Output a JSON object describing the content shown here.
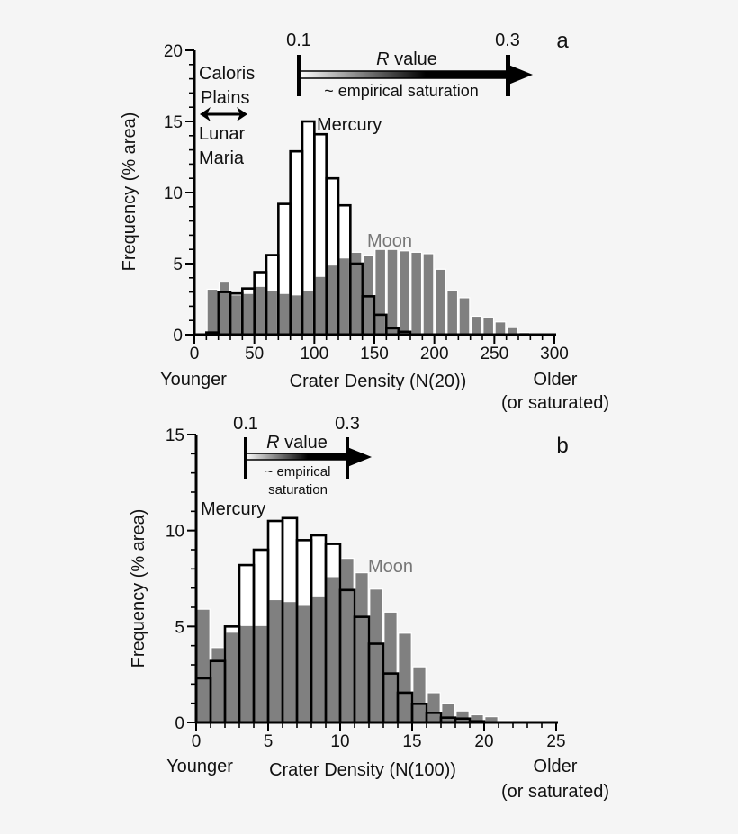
{
  "chart_data": [
    {
      "type": "bar",
      "panel_label": "a",
      "xlabel": "Crater Density (N(20))",
      "ylabel": "Frequency (% area)",
      "x_left_note": "Younger",
      "x_right_note": [
        "Older",
        "(or saturated)"
      ],
      "xlim": [
        0,
        300
      ],
      "ylim": [
        0,
        20
      ],
      "xticks": [
        "0",
        "50",
        "100",
        "150",
        "200",
        "250",
        "300"
      ],
      "yticks": [
        "0",
        "5",
        "10",
        "15",
        "20"
      ],
      "bin_width": 10,
      "colors": {
        "Moon": "#808080",
        "Mercury": "#000000",
        "Mercury_fill": "#ffffff"
      },
      "annotations": {
        "r_scale": {
          "left": "0.1",
          "right": "0.3",
          "title_italic": "R",
          "title": " value",
          "below": [
            "~ empirical saturation"
          ]
        },
        "caloris": [
          "Caloris",
          "Plains"
        ],
        "maria": [
          "Lunar",
          "Maria"
        ]
      },
      "series": [
        {
          "name": "Moon",
          "bin_starts": [
            10,
            20,
            30,
            40,
            50,
            60,
            70,
            80,
            90,
            100,
            110,
            120,
            130,
            140,
            150,
            160,
            170,
            180,
            190,
            200,
            210,
            220,
            230,
            240,
            250,
            260,
            270
          ],
          "values": [
            3.2,
            3.7,
            2.8,
            2.9,
            3.4,
            3.1,
            2.9,
            2.8,
            3.1,
            4.1,
            4.9,
            5.4,
            5.8,
            5.6,
            6.0,
            6.0,
            5.9,
            5.8,
            5.7,
            4.6,
            3.1,
            2.6,
            1.3,
            1.2,
            0.9,
            0.5,
            0.15
          ]
        },
        {
          "name": "Mercury",
          "bin_starts": [
            10,
            20,
            30,
            40,
            50,
            60,
            70,
            80,
            90,
            100,
            110,
            120,
            130,
            140,
            150,
            160,
            170
          ],
          "values": [
            0.15,
            3.0,
            2.9,
            3.25,
            4.4,
            5.6,
            9.2,
            12.9,
            15.0,
            14.1,
            11.0,
            9.1,
            5.0,
            2.7,
            1.4,
            0.45,
            0.2
          ]
        }
      ]
    },
    {
      "type": "bar",
      "panel_label": "b",
      "xlabel": "Crater Density (N(100))",
      "ylabel": "Frequency (% area)",
      "x_left_note": "Younger",
      "x_right_note": [
        "Older",
        "(or saturated)"
      ],
      "xlim": [
        0,
        25
      ],
      "ylim": [
        0,
        15
      ],
      "xticks": [
        "0",
        "5",
        "10",
        "15",
        "20",
        "25"
      ],
      "yticks": [
        "0",
        "5",
        "10",
        "15"
      ],
      "bin_width": 1,
      "colors": {
        "Moon": "#808080",
        "Mercury": "#000000",
        "Mercury_fill": "#ffffff"
      },
      "annotations": {
        "r_scale": {
          "left": "0.1",
          "right": "0.3",
          "title_italic": "R",
          "title": " value",
          "below": [
            "~ empirical",
            "saturation"
          ]
        }
      },
      "series": [
        {
          "name": "Moon",
          "bin_starts": [
            0,
            1,
            2,
            3,
            4,
            5,
            6,
            7,
            8,
            9,
            10,
            11,
            12,
            13,
            14,
            15,
            16,
            17,
            18,
            19,
            20,
            21,
            22,
            23,
            24
          ],
          "values": [
            5.9,
            3.9,
            4.7,
            5.05,
            5.05,
            6.4,
            6.3,
            6.1,
            6.55,
            7.6,
            8.55,
            7.8,
            6.95,
            5.75,
            4.65,
            2.9,
            1.55,
            1.0,
            0.6,
            0.4,
            0.3,
            0.1,
            0.04,
            0.03,
            0.03
          ]
        },
        {
          "name": "Mercury",
          "bin_starts": [
            0,
            1,
            2,
            3,
            4,
            5,
            6,
            7,
            8,
            9,
            10,
            11,
            12,
            13,
            14,
            15,
            16,
            17,
            18,
            19
          ],
          "values": [
            2.3,
            3.2,
            5.0,
            8.2,
            9.0,
            10.5,
            10.65,
            9.5,
            9.75,
            9.3,
            6.9,
            5.5,
            4.1,
            2.55,
            1.55,
            0.97,
            0.5,
            0.25,
            0.2,
            0.06
          ]
        }
      ]
    }
  ]
}
